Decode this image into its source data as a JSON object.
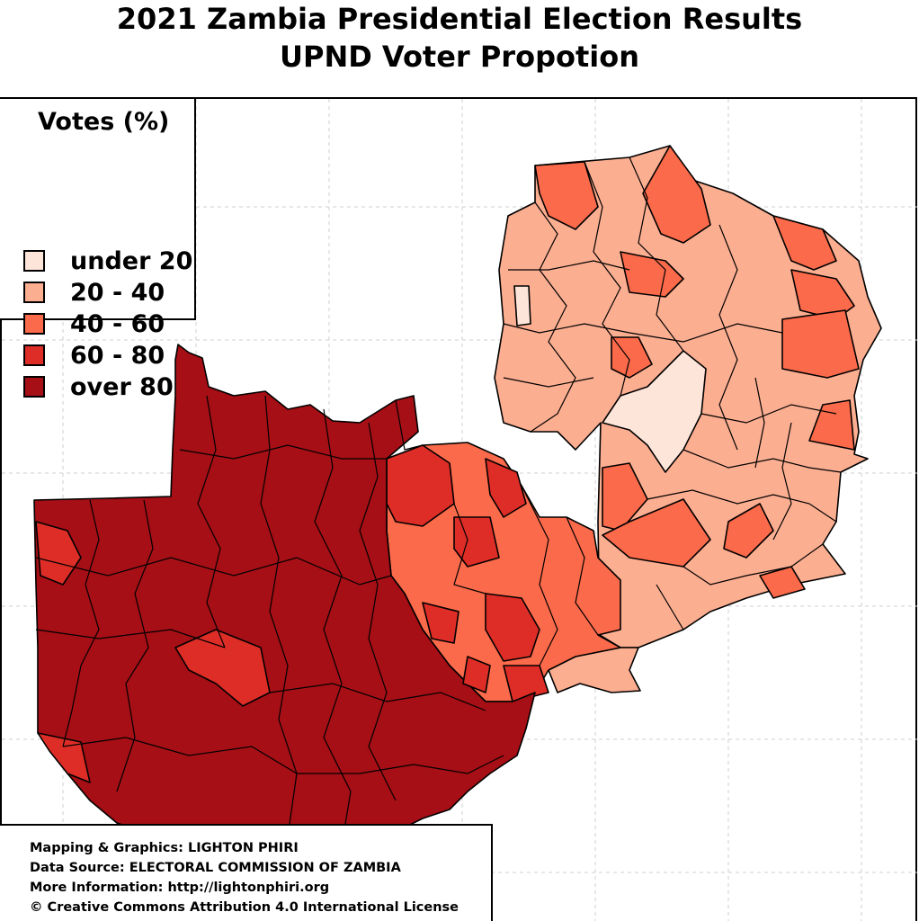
{
  "title": {
    "line1": "2021 Zambia Presidential Election Results",
    "line2": "UPND Voter Propotion"
  },
  "legend": {
    "title": "Votes (%)",
    "items": [
      {
        "label": "under 20",
        "color": "#fee5d9"
      },
      {
        "label": "20 - 40",
        "color": "#fcae91"
      },
      {
        "label": "40 - 60",
        "color": "#fb6a4a"
      },
      {
        "label": "60 - 80",
        "color": "#de2d26"
      },
      {
        "label": "over 80",
        "color": "#a50f15"
      }
    ]
  },
  "credits": {
    "mapping": "Mapping & Graphics: LIGHTON PHIRI",
    "source": "Data Source: ELECTORAL COMMISSION OF ZAMBIA",
    "info": "More Information: http://lightonphiri.org",
    "license": "© Creative Commons Attribution 4.0 International License"
  },
  "map": {
    "subject": "Zambia constituencies",
    "grid": true,
    "region_shares": {
      "western_southern_northwestern": "over 80",
      "central_region": "60 - 80",
      "lusaka_area": "40 - 60",
      "eastern_province": "20 - 40",
      "northern_luapula": "20 - 40",
      "muchinga_center": "under 20"
    }
  }
}
